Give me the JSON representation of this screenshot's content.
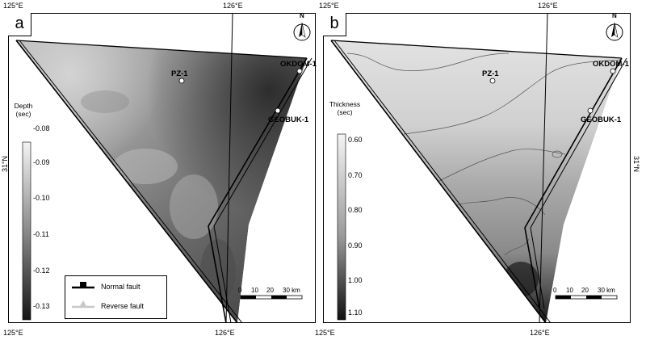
{
  "coords": {
    "top_left": "125°E",
    "top_center": "126°E",
    "bottom_left_a": "125°E",
    "bottom_center_a": "126°E",
    "bottom_left_b": "125°E",
    "bottom_center_b": "126°E",
    "lat_left": "31°N",
    "lat_right": "31°N"
  },
  "panel_a": {
    "label": "a",
    "colorbar": {
      "title_line1": "Depth",
      "title_line2": "(sec)",
      "ticks": [
        "-0.08",
        "-0.09",
        "-0.10",
        "-0.11",
        "-0.12",
        "-0.13"
      ]
    },
    "wells": [
      "PZ-1",
      "OKDOM-1",
      "GEOBUK-1"
    ],
    "north": "N",
    "scale": {
      "ticks": [
        "0",
        "10",
        "20",
        "30 km"
      ]
    },
    "legend": {
      "normal_fault": "Normal fault",
      "reverse_fault": "Reverse fault"
    }
  },
  "panel_b": {
    "label": "b",
    "colorbar": {
      "title_line1": "Thickness",
      "title_line2": "(sec)",
      "ticks": [
        "0.60",
        "0.70",
        "0.80",
        "0.90",
        "1.00",
        "1.10"
      ]
    },
    "wells": [
      "PZ-1",
      "OKDOM-1",
      "GEOBUK-1"
    ],
    "north": "N",
    "scale": {
      "ticks": [
        "0",
        "10",
        "20",
        "30 km"
      ]
    }
  },
  "colors": {
    "normal_fault": "#000000",
    "reverse_fault": "#c8c8c8",
    "well_marker": "#ffffff"
  }
}
